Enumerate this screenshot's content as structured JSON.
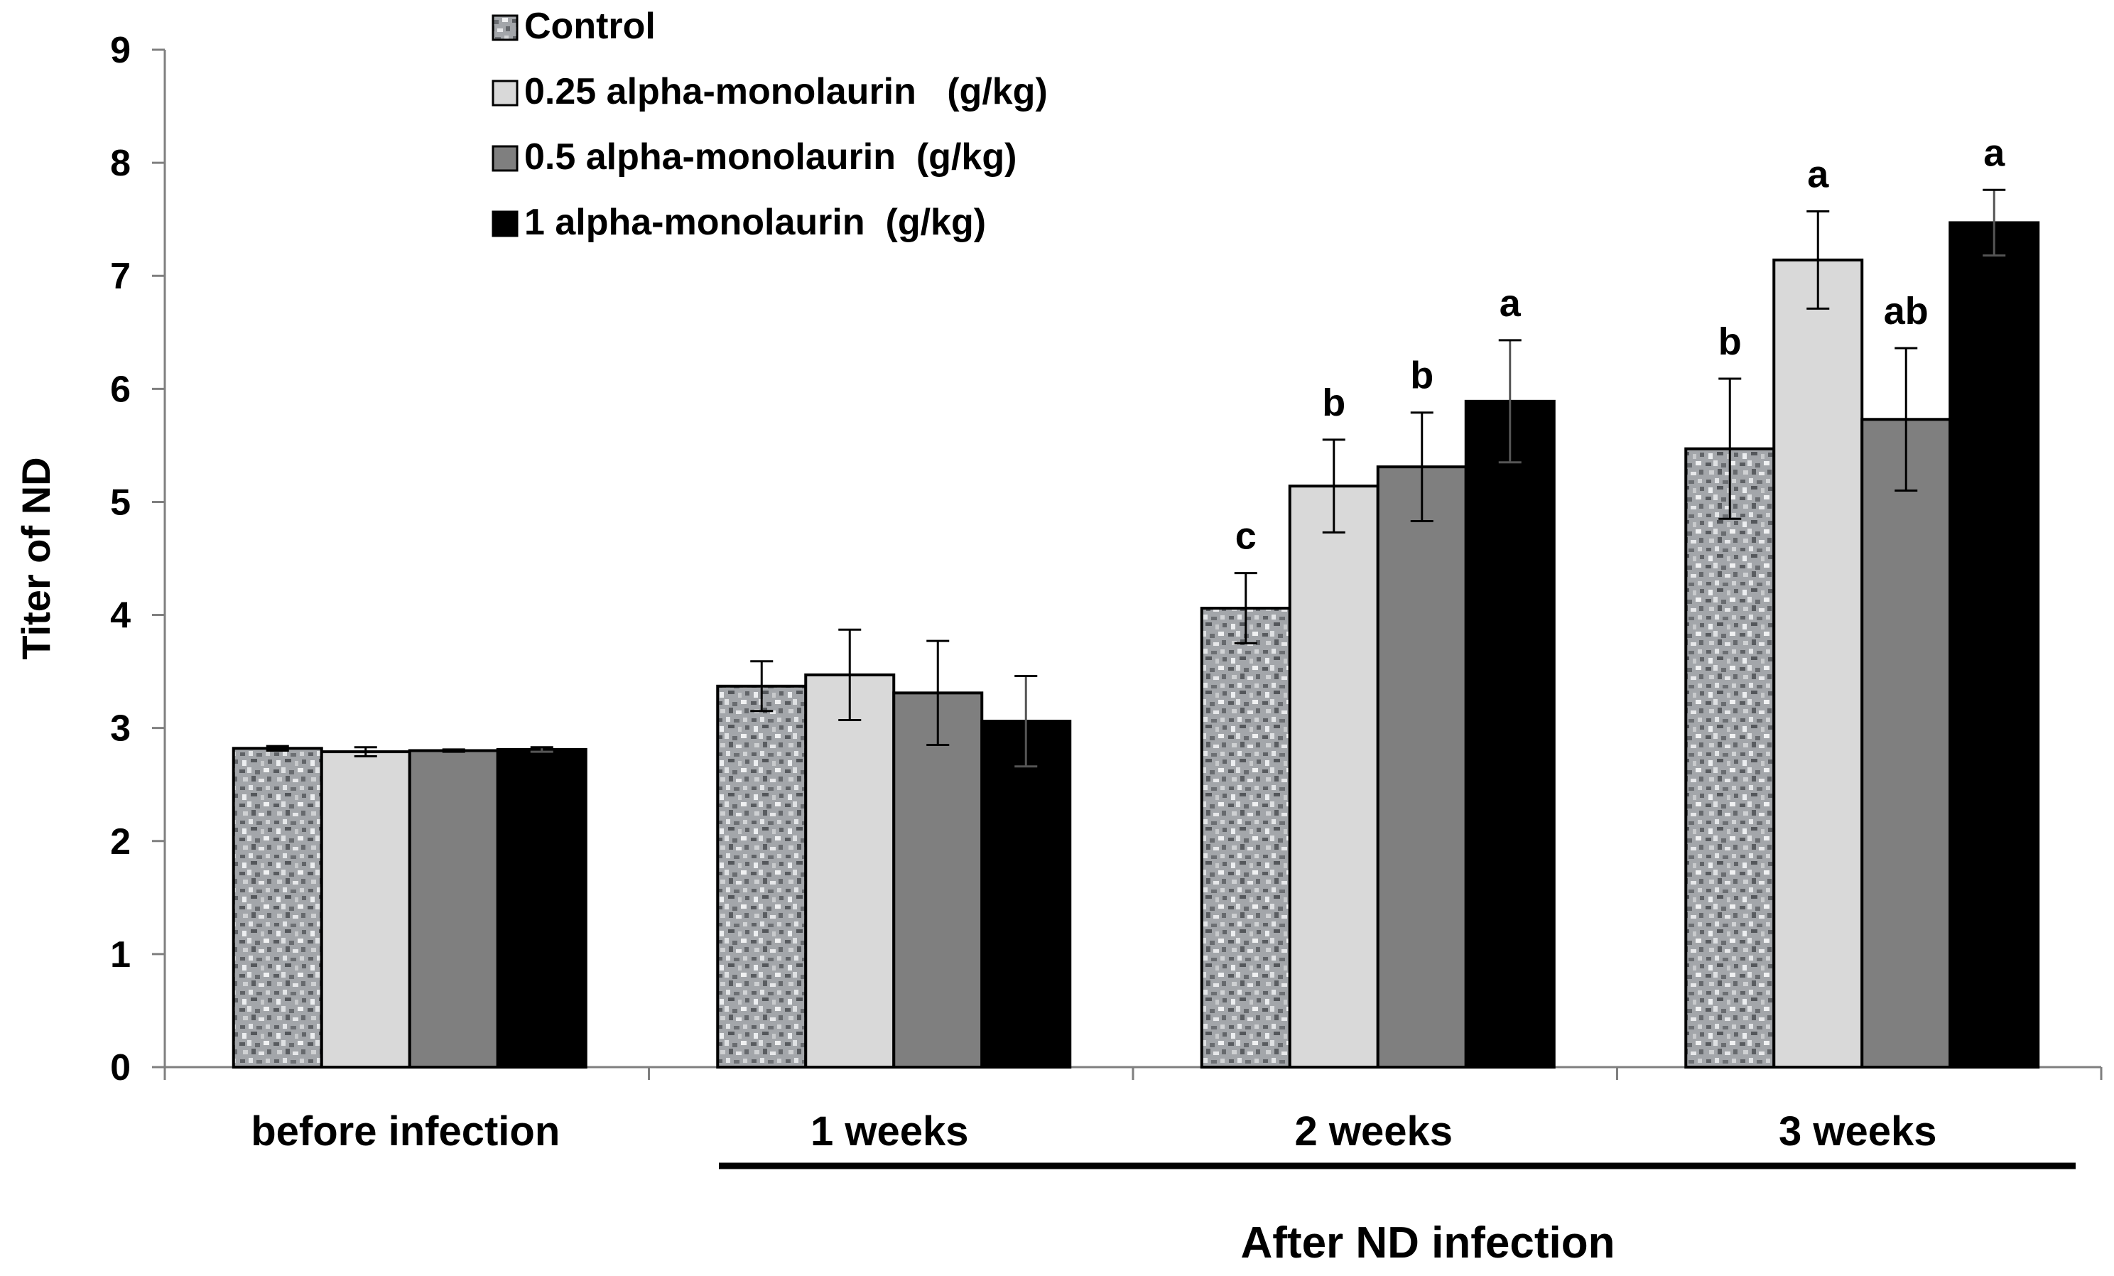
{
  "chart_data": {
    "type": "bar",
    "title": "",
    "xlabel": "",
    "ylabel": "Titer of ND",
    "ylim": [
      0,
      9
    ],
    "yticks": [
      0,
      1,
      2,
      3,
      4,
      5,
      6,
      7,
      8,
      9
    ],
    "grid": false,
    "legend_position": "top-left",
    "categories": [
      "before infection",
      "1 weeks",
      "2 weeks",
      "3 weeks"
    ],
    "group_label": "After ND infection",
    "group_categories": [
      "1 weeks",
      "2 weeks",
      "3 weeks"
    ],
    "series": [
      {
        "name": "Control",
        "color": "#a9acb0",
        "pattern": "speckled",
        "values": [
          2.82,
          3.37,
          4.06,
          5.47
        ],
        "errors": [
          0.02,
          0.22,
          0.31,
          0.62
        ],
        "labels": [
          "",
          "",
          "c",
          "b"
        ]
      },
      {
        "name": "0.25 alpha-monolaurin   (g/kg)",
        "color": "#d9d9d9",
        "pattern": "solid",
        "values": [
          2.79,
          3.47,
          5.14,
          7.14
        ],
        "errors": [
          0.04,
          0.4,
          0.41,
          0.43
        ],
        "labels": [
          "",
          "",
          "b",
          "a"
        ]
      },
      {
        "name": "0.5 alpha-monolaurin  (g/kg)",
        "color": "#7f7f7f",
        "pattern": "solid",
        "values": [
          2.8,
          3.31,
          5.31,
          5.73
        ],
        "errors": [
          0.01,
          0.46,
          0.48,
          0.63
        ],
        "labels": [
          "",
          "",
          "b",
          "ab"
        ]
      },
      {
        "name": "1 alpha-monolaurin  (g/kg)",
        "color": "#000000",
        "pattern": "solid",
        "values": [
          2.81,
          3.06,
          5.89,
          7.47
        ],
        "errors": [
          0.02,
          0.4,
          0.54,
          0.29
        ],
        "labels": [
          "",
          "",
          "a",
          "a"
        ]
      }
    ]
  }
}
